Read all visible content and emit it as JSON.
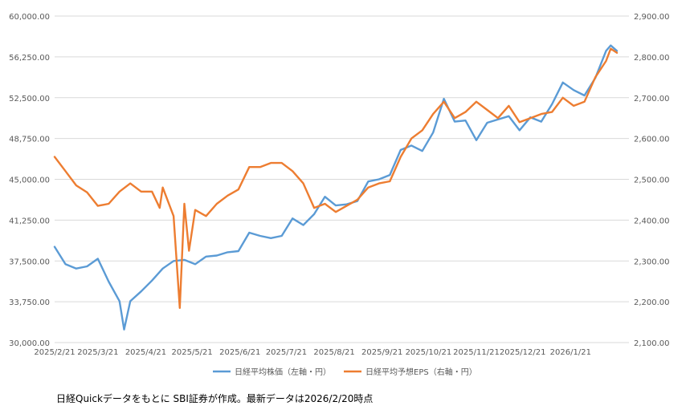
{
  "chart_data": {
    "type": "line",
    "x_ticks": [
      "2025/2/21",
      "2025/3/21",
      "2025/4/21",
      "2025/5/21",
      "2025/6/21",
      "2025/7/21",
      "2025/8/21",
      "2025/9/21",
      "2025/10/21",
      "2025/11/21",
      "2025/12/21",
      "2026/1/21"
    ],
    "y_left_ticks": [
      "30,000.00",
      "33,750.00",
      "37,500.00",
      "41,250.00",
      "45,000.00",
      "48,750.00",
      "52,500.00",
      "56,250.00",
      "60,000.00"
    ],
    "y_right_ticks": [
      "2,100.00",
      "2,200.00",
      "2,300.00",
      "2,400.00",
      "2,500.00",
      "2,600.00",
      "2,700.00",
      "2,800.00",
      "2,900.00"
    ],
    "ylim_left": [
      30000,
      60000
    ],
    "ylim_right": [
      2100,
      2900
    ],
    "grid": true,
    "legend_position": "bottom",
    "series": [
      {
        "name": "日経平均株価（左軸・円）",
        "axis": "left",
        "color": "#5B9BD5",
        "points": [
          [
            "2025/2/21",
            38800
          ],
          [
            "2025/2/28",
            37200
          ],
          [
            "2025/3/7",
            36800
          ],
          [
            "2025/3/14",
            37000
          ],
          [
            "2025/3/21",
            37700
          ],
          [
            "2025/3/28",
            35600
          ],
          [
            "2025/4/4",
            33800
          ],
          [
            "2025/4/7",
            31200
          ],
          [
            "2025/4/11",
            33800
          ],
          [
            "2025/4/18",
            34700
          ],
          [
            "2025/4/25",
            35700
          ],
          [
            "2025/5/2",
            36800
          ],
          [
            "2025/5/9",
            37500
          ],
          [
            "2025/5/16",
            37600
          ],
          [
            "2025/5/23",
            37200
          ],
          [
            "2025/5/30",
            37900
          ],
          [
            "2025/6/6",
            38000
          ],
          [
            "2025/6/13",
            38300
          ],
          [
            "2025/6/20",
            38400
          ],
          [
            "2025/6/27",
            40100
          ],
          [
            "2025/7/4",
            39800
          ],
          [
            "2025/7/11",
            39600
          ],
          [
            "2025/7/18",
            39800
          ],
          [
            "2025/7/25",
            41400
          ],
          [
            "2025/8/1",
            40800
          ],
          [
            "2025/8/8",
            41800
          ],
          [
            "2025/8/15",
            43400
          ],
          [
            "2025/8/22",
            42600
          ],
          [
            "2025/8/29",
            42700
          ],
          [
            "2025/9/5",
            43000
          ],
          [
            "2025/9/12",
            44800
          ],
          [
            "2025/9/19",
            45000
          ],
          [
            "2025/9/26",
            45400
          ],
          [
            "2025/10/3",
            47700
          ],
          [
            "2025/10/10",
            48100
          ],
          [
            "2025/10/17",
            47600
          ],
          [
            "2025/10/24",
            49300
          ],
          [
            "2025/10/31",
            52400
          ],
          [
            "2025/11/7",
            50300
          ],
          [
            "2025/11/14",
            50400
          ],
          [
            "2025/11/21",
            48600
          ],
          [
            "2025/11/28",
            50200
          ],
          [
            "2025/12/5",
            50500
          ],
          [
            "2025/12/12",
            50800
          ],
          [
            "2025/12/19",
            49500
          ],
          [
            "2025/12/26",
            50700
          ],
          [
            "2026/1/2",
            50300
          ],
          [
            "2026/1/9",
            51900
          ],
          [
            "2026/1/16",
            53900
          ],
          [
            "2026/1/23",
            53200
          ],
          [
            "2026/1/30",
            52700
          ],
          [
            "2026/2/6",
            54300
          ],
          [
            "2026/2/13",
            56800
          ],
          [
            "2026/2/16",
            57300
          ],
          [
            "2026/2/20",
            56800
          ]
        ]
      },
      {
        "name": "日経平均予想EPS（右軸・円）",
        "axis": "right",
        "color": "#ED7D31",
        "points": [
          [
            "2025/2/21",
            2555
          ],
          [
            "2025/2/28",
            2520
          ],
          [
            "2025/3/7",
            2485
          ],
          [
            "2025/3/14",
            2468
          ],
          [
            "2025/3/21",
            2435
          ],
          [
            "2025/3/28",
            2440
          ],
          [
            "2025/4/4",
            2470
          ],
          [
            "2025/4/11",
            2490
          ],
          [
            "2025/4/18",
            2470
          ],
          [
            "2025/4/25",
            2470
          ],
          [
            "2025/4/30",
            2430
          ],
          [
            "2025/5/2",
            2480
          ],
          [
            "2025/5/9",
            2410
          ],
          [
            "2025/5/13",
            2185
          ],
          [
            "2025/5/16",
            2440
          ],
          [
            "2025/5/19",
            2325
          ],
          [
            "2025/5/23",
            2425
          ],
          [
            "2025/5/30",
            2410
          ],
          [
            "2025/6/6",
            2440
          ],
          [
            "2025/6/13",
            2460
          ],
          [
            "2025/6/20",
            2475
          ],
          [
            "2025/6/27",
            2530
          ],
          [
            "2025/7/4",
            2530
          ],
          [
            "2025/7/11",
            2540
          ],
          [
            "2025/7/18",
            2540
          ],
          [
            "2025/7/25",
            2520
          ],
          [
            "2025/8/1",
            2490
          ],
          [
            "2025/8/8",
            2430
          ],
          [
            "2025/8/15",
            2440
          ],
          [
            "2025/8/22",
            2420
          ],
          [
            "2025/8/29",
            2435
          ],
          [
            "2025/9/5",
            2450
          ],
          [
            "2025/9/12",
            2480
          ],
          [
            "2025/9/19",
            2490
          ],
          [
            "2025/9/26",
            2495
          ],
          [
            "2025/10/3",
            2555
          ],
          [
            "2025/10/10",
            2600
          ],
          [
            "2025/10/17",
            2620
          ],
          [
            "2025/10/24",
            2660
          ],
          [
            "2025/10/31",
            2690
          ],
          [
            "2025/11/7",
            2650
          ],
          [
            "2025/11/14",
            2665
          ],
          [
            "2025/11/21",
            2690
          ],
          [
            "2025/11/28",
            2670
          ],
          [
            "2025/12/5",
            2650
          ],
          [
            "2025/12/12",
            2680
          ],
          [
            "2025/12/19",
            2640
          ],
          [
            "2025/12/26",
            2650
          ],
          [
            "2026/1/2",
            2660
          ],
          [
            "2026/1/9",
            2665
          ],
          [
            "2026/1/16",
            2700
          ],
          [
            "2026/1/23",
            2680
          ],
          [
            "2026/1/30",
            2690
          ],
          [
            "2026/2/6",
            2750
          ],
          [
            "2026/2/13",
            2790
          ],
          [
            "2026/2/16",
            2820
          ],
          [
            "2026/2/20",
            2810
          ]
        ]
      }
    ]
  },
  "footnote": "日経Quickデータをもとに SBI証券が作成。最新データは2026/2/20時点"
}
